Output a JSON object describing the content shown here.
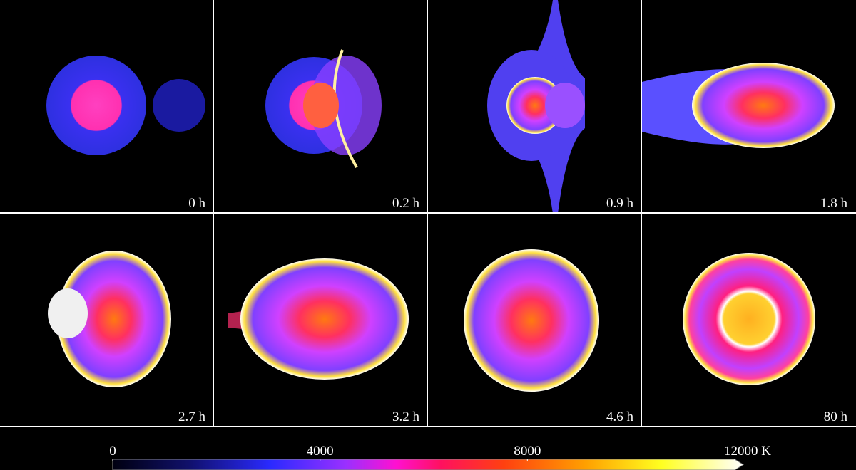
{
  "panels": [
    {
      "label": "0 h"
    },
    {
      "label": "0.2 h"
    },
    {
      "label": "0.9 h"
    },
    {
      "label": "1.8 h"
    },
    {
      "label": "2.7 h"
    },
    {
      "label": "3.2 h"
    },
    {
      "label": "4.6 h"
    },
    {
      "label": "80 h"
    }
  ],
  "colorbar": {
    "lim": [
      0,
      12000
    ],
    "ticks": [
      0,
      4000,
      8000,
      {
        "value": 12000,
        "label": "12000 K"
      }
    ]
  }
}
